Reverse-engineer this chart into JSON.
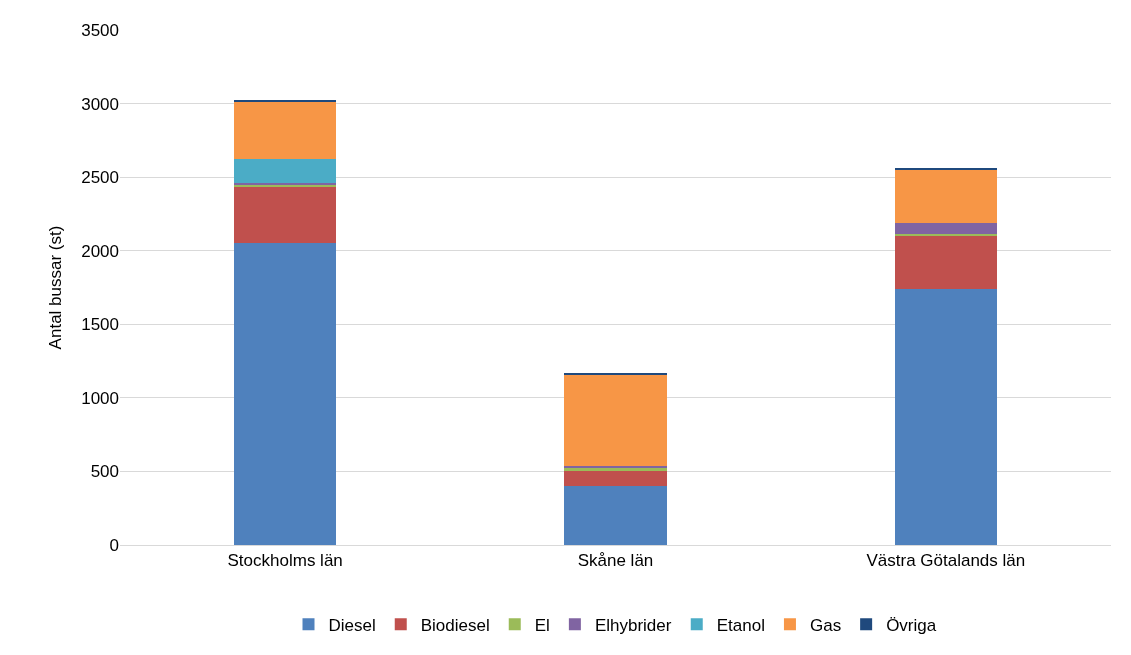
{
  "chart_data": {
    "type": "bar",
    "stacked": true,
    "ylabel": "Antal bussar (st)",
    "categories": [
      "Stockholms län",
      "Skåne län",
      "Västra Götalands län"
    ],
    "ylim": [
      0,
      3500
    ],
    "yticks": [
      0,
      500,
      1000,
      1500,
      2000,
      2500,
      3000,
      3500
    ],
    "grid": "y",
    "legend": "bottom",
    "series": [
      {
        "name": "Diesel",
        "color": "#4f81bd",
        "values": [
          2050,
          400,
          1740
        ]
      },
      {
        "name": "Biodiesel",
        "color": "#c0504d",
        "values": [
          380,
          100,
          360
        ]
      },
      {
        "name": "El",
        "color": "#9bbb59",
        "values": [
          20,
          30,
          15
        ]
      },
      {
        "name": "Elhybrider",
        "color": "#8064a2",
        "values": [
          10,
          10,
          70
        ]
      },
      {
        "name": "Etanol",
        "color": "#4bacc6",
        "values": [
          165,
          0,
          0
        ]
      },
      {
        "name": "Gas",
        "color": "#f79646",
        "values": [
          390,
          620,
          370
        ]
      },
      {
        "name": "Övriga",
        "color": "#1f497d",
        "values": [
          5,
          10,
          5
        ]
      }
    ]
  }
}
